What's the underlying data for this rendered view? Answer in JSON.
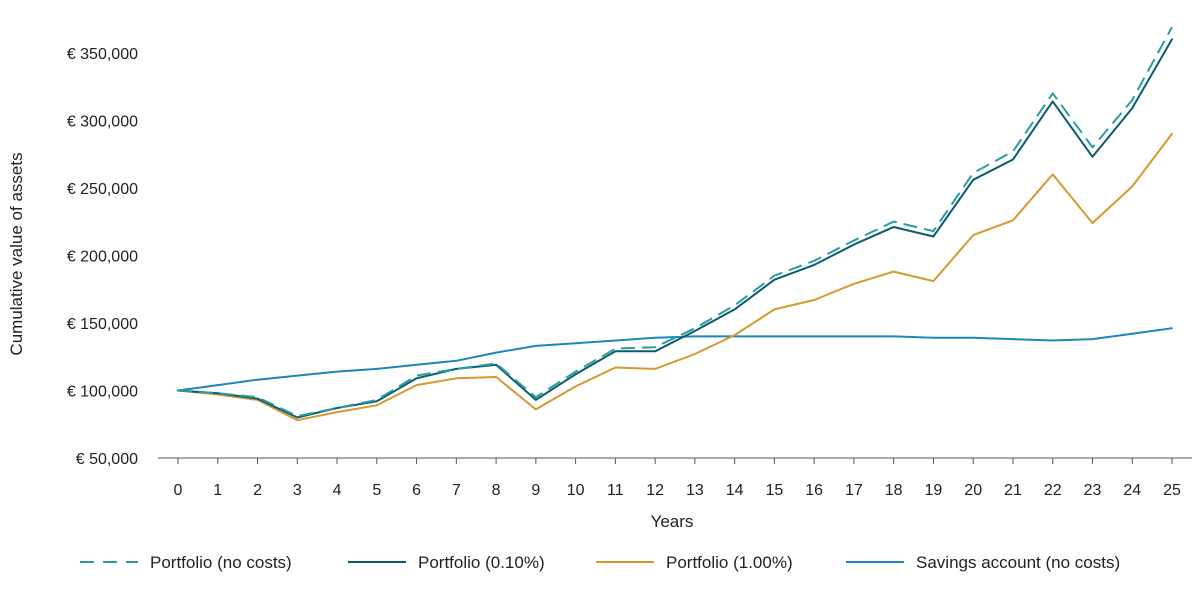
{
  "chart_data": {
    "type": "line",
    "title": "",
    "xlabel": "Years",
    "ylabel": "Cumulative value of assets",
    "x": [
      0,
      1,
      2,
      3,
      4,
      5,
      6,
      7,
      8,
      9,
      10,
      11,
      12,
      13,
      14,
      15,
      16,
      17,
      18,
      19,
      20,
      21,
      22,
      23,
      24,
      25
    ],
    "xlim": [
      0,
      25
    ],
    "ylim": [
      50000,
      370000
    ],
    "yticks": [
      50000,
      100000,
      150000,
      200000,
      250000,
      300000,
      350000
    ],
    "ytick_labels": [
      "€ 50,000",
      "€ 100,000",
      "€ 150,000",
      "€ 200,000",
      "€ 250,000",
      "€ 300,000",
      "€ 350,000"
    ],
    "xtick_labels": [
      "0",
      "1",
      "2",
      "3",
      "4",
      "5",
      "6",
      "7",
      "8",
      "9",
      "10",
      "11",
      "12",
      "13",
      "14",
      "15",
      "16",
      "17",
      "18",
      "19",
      "20",
      "21",
      "22",
      "23",
      "24",
      "25"
    ],
    "grid": false,
    "legend_position": "bottom",
    "series": [
      {
        "name": "Portfolio (no costs)",
        "color": "#2a9d9f",
        "dash": "dashed",
        "values": [
          100000,
          98000,
          95000,
          81000,
          87000,
          93000,
          111000,
          116000,
          120000,
          95000,
          114000,
          131000,
          132000,
          146000,
          163000,
          185000,
          196000,
          211000,
          225000,
          218000,
          261000,
          277000,
          320000,
          280000,
          315000,
          369000
        ]
      },
      {
        "name": "Portfolio (0.10%)",
        "color": "#0c5c6e",
        "dash": "solid",
        "values": [
          100000,
          98000,
          94000,
          80000,
          87000,
          92000,
          109000,
          116000,
          119000,
          93000,
          112000,
          129000,
          129000,
          144000,
          160000,
          182000,
          193000,
          208000,
          221000,
          214000,
          256000,
          271000,
          314000,
          273000,
          309000,
          360000
        ]
      },
      {
        "name": "Portfolio (1.00%)",
        "color": "#d39a2f",
        "dash": "solid",
        "values": [
          100000,
          97000,
          93000,
          78000,
          84000,
          89000,
          104000,
          109000,
          110000,
          86000,
          103000,
          117000,
          116000,
          127000,
          141000,
          160000,
          167000,
          179000,
          188000,
          181000,
          215000,
          226000,
          260000,
          224000,
          251000,
          290000
        ]
      },
      {
        "name": "Savings account (no costs)",
        "color": "#1f86ba",
        "dash": "solid",
        "values": [
          100000,
          104000,
          108000,
          111000,
          114000,
          116000,
          119000,
          122000,
          128000,
          133000,
          135000,
          137000,
          139000,
          140000,
          140000,
          140000,
          140000,
          140000,
          140000,
          139000,
          139000,
          138000,
          137000,
          138000,
          142000,
          146000
        ]
      }
    ]
  }
}
